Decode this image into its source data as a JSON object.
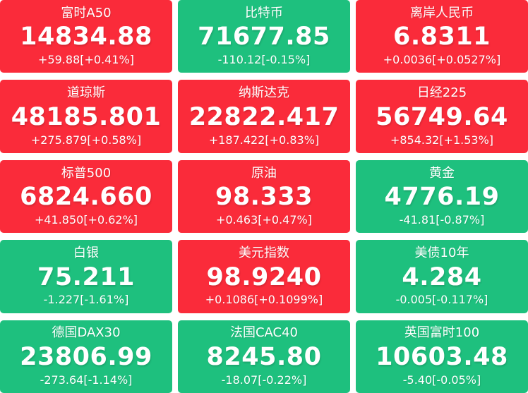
{
  "board": {
    "colors": {
      "up_bg": "#fa2b3a",
      "down_bg": "#1ec07e",
      "text": "#ffffff"
    },
    "tiles": [
      {
        "name": "富时A50",
        "value": "14834.88",
        "change": "+59.88[+0.41%]",
        "direction": "up"
      },
      {
        "name": "比特币",
        "value": "71677.85",
        "change": "-110.12[-0.15%]",
        "direction": "down"
      },
      {
        "name": "离岸人民币",
        "value": "6.8311",
        "change": "+0.0036[+0.0527%]",
        "direction": "up"
      },
      {
        "name": "道琼斯",
        "value": "48185.801",
        "change": "+275.879[+0.58%]",
        "direction": "up"
      },
      {
        "name": "纳斯达克",
        "value": "22822.417",
        "change": "+187.422[+0.83%]",
        "direction": "up"
      },
      {
        "name": "日经225",
        "value": "56749.64",
        "change": "+854.32[+1.53%]",
        "direction": "up"
      },
      {
        "name": "标普500",
        "value": "6824.660",
        "change": "+41.850[+0.62%]",
        "direction": "up"
      },
      {
        "name": "原油",
        "value": "98.333",
        "change": "+0.463[+0.47%]",
        "direction": "up"
      },
      {
        "name": "黄金",
        "value": "4776.19",
        "change": "-41.81[-0.87%]",
        "direction": "down"
      },
      {
        "name": "白银",
        "value": "75.211",
        "change": "-1.227[-1.61%]",
        "direction": "down"
      },
      {
        "name": "美元指数",
        "value": "98.9240",
        "change": "+0.1086[+0.1099%]",
        "direction": "up"
      },
      {
        "name": "美债10年",
        "value": "4.284",
        "change": "-0.005[-0.117%]",
        "direction": "down"
      },
      {
        "name": "德国DAX30",
        "value": "23806.99",
        "change": "-273.64[-1.14%]",
        "direction": "down"
      },
      {
        "name": "法国CAC40",
        "value": "8245.80",
        "change": "-18.07[-0.22%]",
        "direction": "down"
      },
      {
        "name": "英国富时100",
        "value": "10603.48",
        "change": "-5.40[-0.05%]",
        "direction": "down"
      }
    ]
  }
}
